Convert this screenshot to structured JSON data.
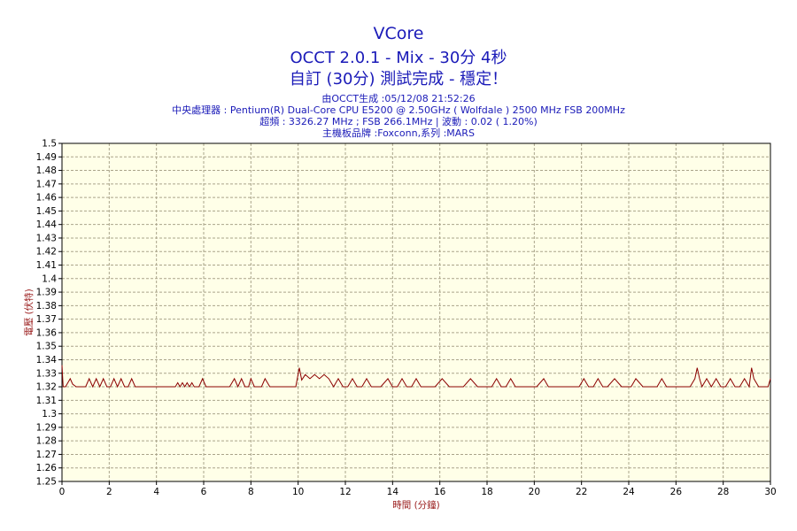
{
  "header": {
    "title": "VCore",
    "subtitle": "OCCT 2.0.1 - Mix - 30分 4秒",
    "status": "自訂 (30分) 測試完成 - 穩定！",
    "generated": "由OCCT生成 :05/12/08 21:52:26",
    "cpu": "中央處理器 : Pentium(R) Dual-Core CPU E5200 @ 2.50GHz ( Wolfdale ) 2500 MHz FSB 200MHz",
    "overclock": "超頻 : 3326.27 MHz ; FSB 266.1MHz | 波動 : 0.02 ( 1.20%)",
    "board": "主機板品牌 :Foxconn,系列 :MARS"
  },
  "colors": {
    "plot_bg": "#ffffe8",
    "grid": "#aaa48a",
    "line": "#8b0000",
    "text_blue": "#1a1ab8",
    "axis_label": "#9a1c1c"
  },
  "chart_data": {
    "type": "line",
    "xlabel": "時間 (分鐘)",
    "ylabel": "電壓 (伏特)",
    "xlim": [
      0,
      30
    ],
    "ylim": [
      1.25,
      1.5
    ],
    "x_ticks": [
      "0",
      "2",
      "4",
      "6",
      "8",
      "10",
      "12",
      "14",
      "16",
      "18",
      "20",
      "22",
      "24",
      "26",
      "28",
      "30"
    ],
    "y_ticks": [
      "1.5",
      "1.49",
      "1.48",
      "1.47",
      "1.46",
      "1.45",
      "1.44",
      "1.43",
      "1.42",
      "1.41",
      "1.4",
      "1.39",
      "1.38",
      "1.37",
      "1.36",
      "1.35",
      "1.34",
      "1.33",
      "1.32",
      "1.31",
      "1.3",
      "1.29",
      "1.28",
      "1.27",
      "1.26",
      "1.25"
    ],
    "grid": true,
    "series": [
      {
        "x": [
          0,
          0.05,
          0.15,
          0.35,
          0.45,
          0.6,
          0.8,
          1.0,
          1.15,
          1.3,
          1.45,
          1.6,
          1.75,
          1.9,
          2.05,
          2.2,
          2.35,
          2.5,
          2.65,
          2.8,
          2.95,
          3.1,
          3.3,
          3.6,
          4.0,
          4.4,
          4.8,
          4.9,
          5.0,
          5.1,
          5.2,
          5.3,
          5.4,
          5.5,
          5.6,
          5.8,
          5.95,
          6.1,
          6.3,
          6.7,
          7.1,
          7.3,
          7.45,
          7.6,
          7.75,
          7.9,
          8.0,
          8.15,
          8.3,
          8.45,
          8.6,
          8.8,
          9.0,
          9.3,
          9.6,
          9.9,
          10.05,
          10.15,
          10.3,
          10.5,
          10.7,
          10.9,
          11.1,
          11.3,
          11.5,
          11.7,
          11.9,
          12.1,
          12.3,
          12.5,
          12.7,
          12.9,
          13.1,
          13.3,
          13.5,
          13.8,
          14.0,
          14.2,
          14.4,
          14.6,
          14.8,
          15.0,
          15.2,
          15.5,
          15.8,
          16.1,
          16.4,
          16.7,
          17.0,
          17.3,
          17.6,
          17.9,
          18.2,
          18.4,
          18.6,
          18.8,
          19.0,
          19.2,
          19.5,
          19.8,
          20.1,
          20.4,
          20.6,
          20.8,
          21.0,
          21.3,
          21.6,
          21.9,
          22.1,
          22.3,
          22.5,
          22.7,
          22.9,
          23.1,
          23.4,
          23.7,
          23.9,
          24.1,
          24.3,
          24.6,
          24.9,
          25.2,
          25.4,
          25.6,
          25.8,
          26.0,
          26.3,
          26.6,
          26.8,
          26.9,
          27.0,
          27.1,
          27.3,
          27.5,
          27.7,
          27.9,
          28.1,
          28.3,
          28.5,
          28.7,
          28.9,
          29.1,
          29.2,
          29.3,
          29.5,
          29.7,
          29.9,
          30.0
        ],
        "y": [
          1.336,
          1.32,
          1.32,
          1.326,
          1.322,
          1.32,
          1.32,
          1.32,
          1.326,
          1.32,
          1.326,
          1.32,
          1.326,
          1.32,
          1.32,
          1.326,
          1.32,
          1.326,
          1.32,
          1.32,
          1.326,
          1.32,
          1.32,
          1.32,
          1.32,
          1.32,
          1.32,
          1.323,
          1.32,
          1.323,
          1.32,
          1.323,
          1.32,
          1.323,
          1.32,
          1.32,
          1.326,
          1.32,
          1.32,
          1.32,
          1.32,
          1.326,
          1.32,
          1.326,
          1.32,
          1.32,
          1.326,
          1.32,
          1.32,
          1.32,
          1.326,
          1.32,
          1.32,
          1.32,
          1.32,
          1.32,
          1.334,
          1.325,
          1.329,
          1.326,
          1.329,
          1.326,
          1.329,
          1.326,
          1.32,
          1.326,
          1.32,
          1.32,
          1.326,
          1.32,
          1.32,
          1.326,
          1.32,
          1.32,
          1.32,
          1.326,
          1.32,
          1.32,
          1.326,
          1.32,
          1.32,
          1.326,
          1.32,
          1.32,
          1.32,
          1.326,
          1.32,
          1.32,
          1.32,
          1.326,
          1.32,
          1.32,
          1.32,
          1.326,
          1.32,
          1.32,
          1.326,
          1.32,
          1.32,
          1.32,
          1.32,
          1.326,
          1.32,
          1.32,
          1.32,
          1.32,
          1.32,
          1.32,
          1.326,
          1.32,
          1.32,
          1.326,
          1.32,
          1.32,
          1.326,
          1.32,
          1.32,
          1.32,
          1.326,
          1.32,
          1.32,
          1.32,
          1.326,
          1.32,
          1.32,
          1.32,
          1.32,
          1.32,
          1.326,
          1.334,
          1.326,
          1.32,
          1.326,
          1.32,
          1.326,
          1.32,
          1.32,
          1.326,
          1.32,
          1.32,
          1.326,
          1.32,
          1.334,
          1.326,
          1.32,
          1.32,
          1.32,
          1.326
        ]
      }
    ]
  }
}
